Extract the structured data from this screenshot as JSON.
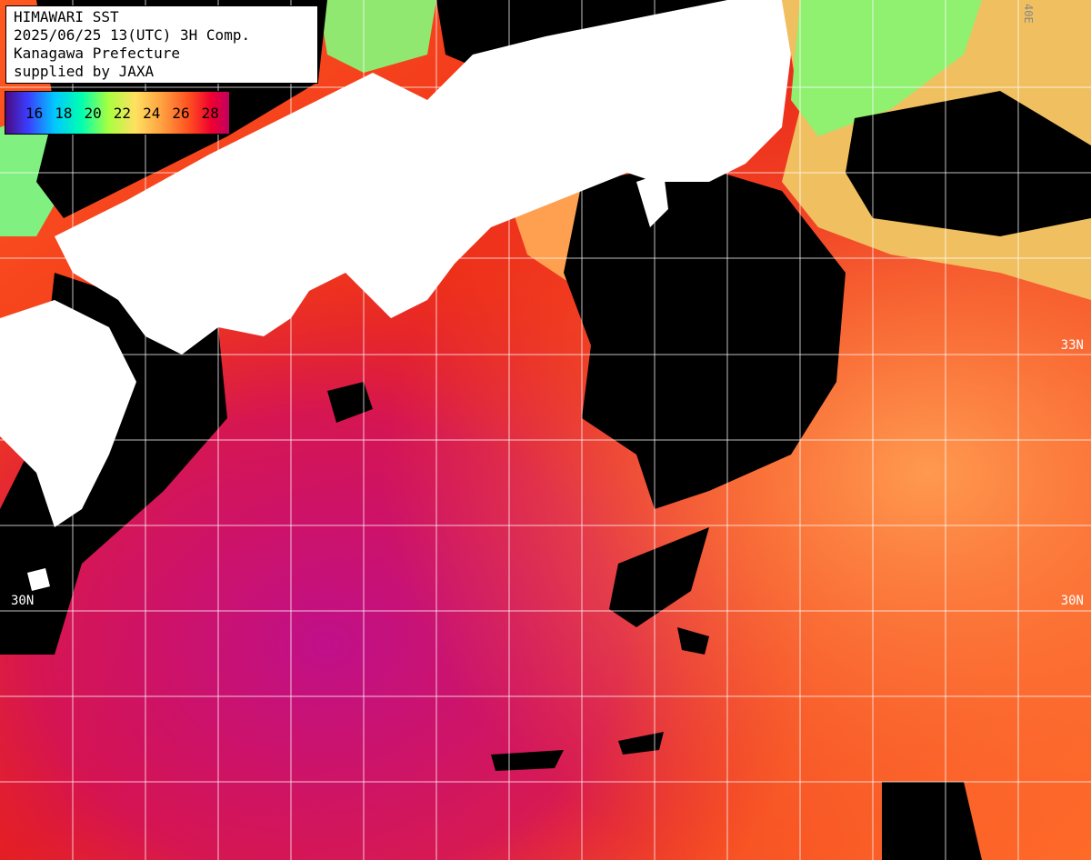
{
  "title": {
    "line1": "HIMAWARI SST",
    "line2": "2025/06/25 13(UTC) 3H Comp.",
    "line3": "Kanagawa Prefecture",
    "line4": "supplied by JAXA"
  },
  "legend": {
    "labels": [
      "16",
      "18",
      "20",
      "22",
      "24",
      "26",
      "28"
    ],
    "colors": {
      "cold": "#4a0a80",
      "mid": "#a8ff40",
      "warm": "#ff5020",
      "hot": "#c00060",
      "cloud": "#000000",
      "land": "#ffffff"
    }
  },
  "latitude_labels": {
    "n33_left": "33",
    "n33_right": "33N",
    "n30_left": "30N",
    "n30_right": "30N"
  },
  "edge_text": "40E"
}
